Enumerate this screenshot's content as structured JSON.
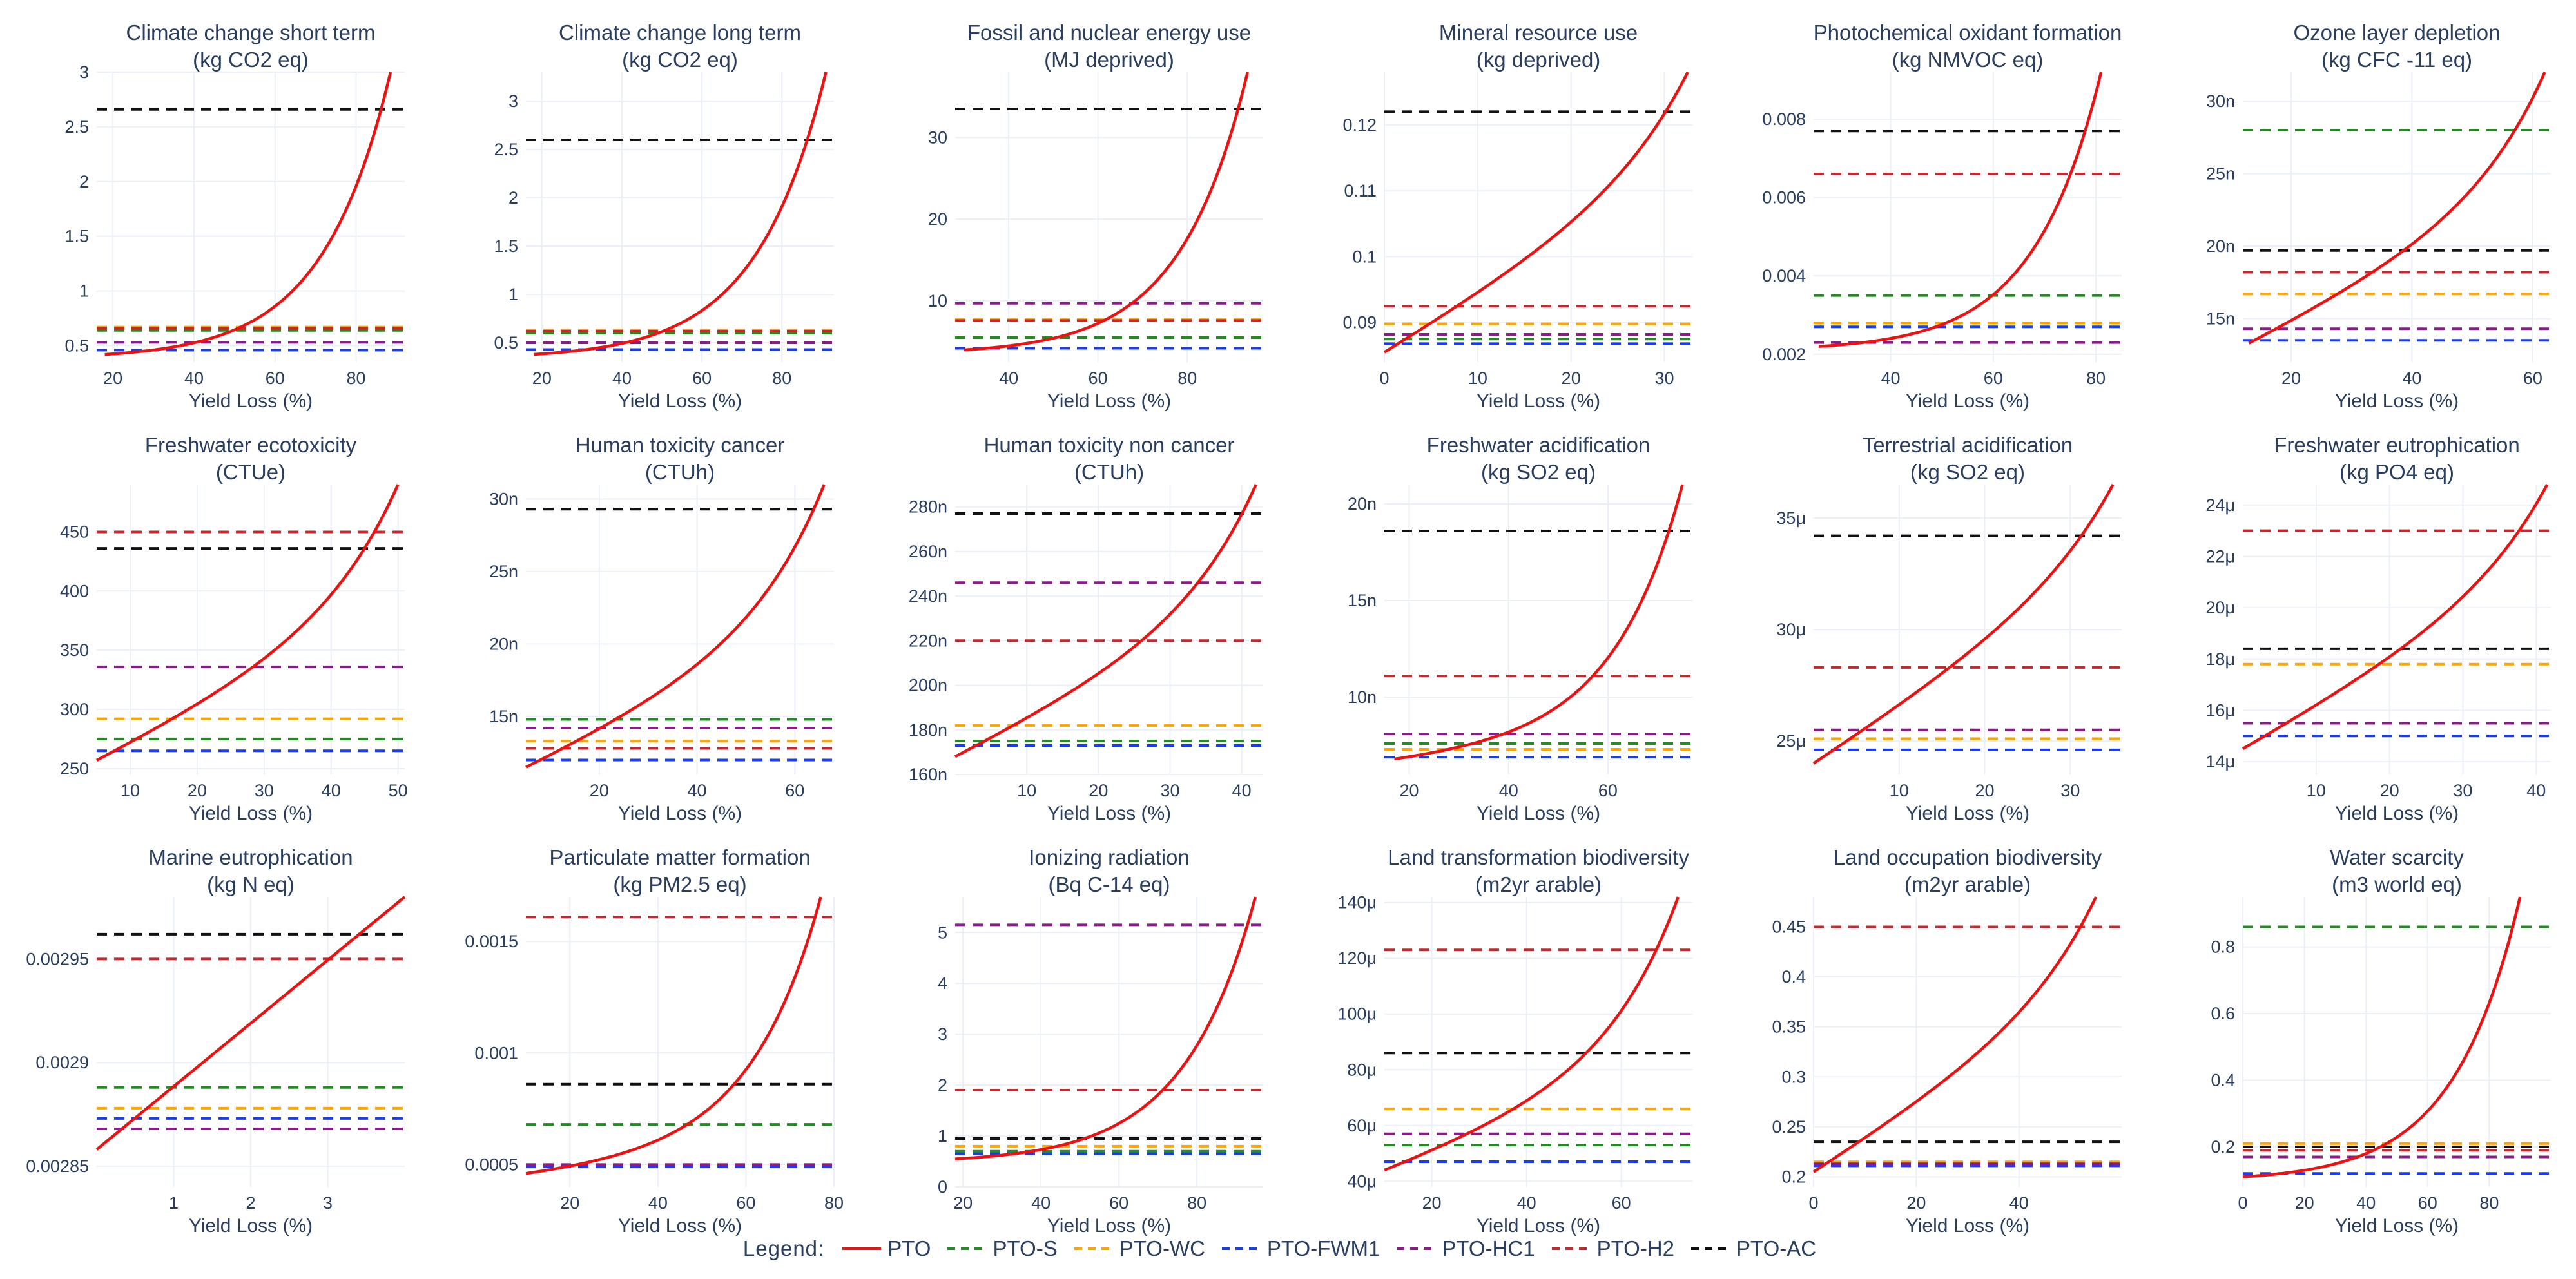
{
  "figure": {
    "x_axis_label": "Yield Loss (%)",
    "legend_title": "Legend:"
  },
  "colors": {
    "PTO": "#ee1111",
    "PTO-S": "#228b22",
    "PTO-WC": "#ffa500",
    "PTO-FWM1": "#1a3cf0",
    "PTO-HC1": "#8b1a8b",
    "PTO-H2": "#c8282d",
    "PTO-AC": "#111111"
  },
  "legend": {
    "items": [
      {
        "name": "PTO",
        "dash": "solid"
      },
      {
        "name": "PTO-S",
        "dash": "dash"
      },
      {
        "name": "PTO-WC",
        "dash": "dash"
      },
      {
        "name": "PTO-FWM1",
        "dash": "dash"
      },
      {
        "name": "PTO-HC1",
        "dash": "dash"
      },
      {
        "name": "PTO-H2",
        "dash": "dash"
      },
      {
        "name": "PTO-AC",
        "dash": "dash"
      }
    ]
  },
  "chart_data": [
    {
      "type": "line",
      "title": "Climate change short term",
      "unit": "(kg CO2 eq)",
      "xlabel": "Yield Loss (%)",
      "xlim": [
        16,
        92
      ],
      "ylim": [
        0.35,
        3.0
      ],
      "xticks": [
        20,
        40,
        60,
        80
      ],
      "yticks": [
        {
          "v": 0.5,
          "l": "0.5"
        },
        {
          "v": 1,
          "l": "1"
        },
        {
          "v": 1.5,
          "l": "1.5"
        },
        {
          "v": 2,
          "l": "2"
        },
        {
          "v": 2.5,
          "l": "2.5"
        },
        {
          "v": 3,
          "l": "3"
        }
      ],
      "pto_curve": {
        "x0": 18,
        "x1": 88.5,
        "y0": 0.42,
        "k": 0.0025,
        "p": 1.4,
        "a": 1
      },
      "baselines": {
        "PTO-S": 0.64,
        "PTO-WC": 0.67,
        "PTO-FWM1": 0.46,
        "PTO-HC1": 0.53,
        "PTO-H2": 0.66,
        "PTO-AC": 2.66
      }
    },
    {
      "type": "line",
      "title": "Climate change long term",
      "unit": "(kg CO2 eq)",
      "xlabel": "Yield Loss (%)",
      "xlim": [
        16,
        93
      ],
      "ylim": [
        0.3,
        3.3
      ],
      "xticks": [
        20,
        40,
        60,
        80
      ],
      "yticks": [
        {
          "v": 0.5,
          "l": "0.5"
        },
        {
          "v": 1,
          "l": "1"
        },
        {
          "v": 1.5,
          "l": "1.5"
        },
        {
          "v": 2,
          "l": "2"
        },
        {
          "v": 2.5,
          "l": "2.5"
        },
        {
          "v": 3,
          "l": "3"
        }
      ],
      "pto_curve": {
        "x0": 18,
        "x1": 91,
        "y0": 0.38,
        "k": 0.0025,
        "p": 1.4,
        "a": 1
      },
      "baselines": {
        "PTO-S": 0.6,
        "PTO-WC": 0.63,
        "PTO-FWM1": 0.43,
        "PTO-HC1": 0.5,
        "PTO-H2": 0.62,
        "PTO-AC": 2.6
      }
    },
    {
      "type": "line",
      "title": "Fossil and nuclear energy use",
      "unit": "(MJ deprived)",
      "xlabel": "Yield Loss (%)",
      "xlim": [
        28,
        97
      ],
      "ylim": [
        2.5,
        38
      ],
      "xticks": [
        40,
        60,
        80
      ],
      "yticks": [
        {
          "v": 10,
          "l": "10"
        },
        {
          "v": 20,
          "l": "20"
        },
        {
          "v": 30,
          "l": "30"
        }
      ],
      "pto_curve": {
        "x0": 30,
        "x1": 93.5,
        "y0": 4,
        "k": 0.0025,
        "p": 1.4,
        "a": 1
      },
      "baselines": {
        "PTO-S": 5.5,
        "PTO-WC": 7.7,
        "PTO-FWM1": 4.2,
        "PTO-HC1": 9.7,
        "PTO-H2": 7.6,
        "PTO-AC": 33.5
      }
    },
    {
      "type": "line",
      "title": "Mineral resource use",
      "unit": "(kg deprived)",
      "xlabel": "Yield Loss (%)",
      "xlim": [
        0,
        33
      ],
      "ylim": [
        0.084,
        0.128
      ],
      "xticks": [
        0,
        10,
        20,
        30
      ],
      "yticks": [
        {
          "v": 0.09,
          "l": "0.09"
        },
        {
          "v": 0.1,
          "l": "0.1"
        },
        {
          "v": 0.11,
          "l": "0.11"
        },
        {
          "v": 0.12,
          "l": "0.12"
        }
      ],
      "pto_curve": {
        "x0": 0,
        "x1": 32.5,
        "y0": 0.0855,
        "k": 0.0025,
        "p": 1.4,
        "a": 0.35
      },
      "baselines": {
        "PTO-S": 0.0875,
        "PTO-WC": 0.0898,
        "PTO-FWM1": 0.0868,
        "PTO-HC1": 0.0882,
        "PTO-H2": 0.0925,
        "PTO-AC": 0.122
      }
    },
    {
      "type": "line",
      "title": "Photochemical oxidant formation",
      "unit": "(kg NMVOC eq)",
      "xlabel": "Yield Loss (%)",
      "xlim": [
        25,
        85
      ],
      "ylim": [
        0.0018,
        0.0092
      ],
      "xticks": [
        40,
        60,
        80
      ],
      "yticks": [
        {
          "v": 0.002,
          "l": "0.002"
        },
        {
          "v": 0.004,
          "l": "0.004"
        },
        {
          "v": 0.006,
          "l": "0.006"
        },
        {
          "v": 0.008,
          "l": "0.008"
        }
      ],
      "pto_curve": {
        "x0": 26,
        "x1": 81,
        "y0": 0.0022,
        "k": 0.0025,
        "p": 1.4,
        "a": 1
      },
      "baselines": {
        "PTO-S": 0.0035,
        "PTO-WC": 0.0028,
        "PTO-FWM1": 0.0027,
        "PTO-HC1": 0.0023,
        "PTO-H2": 0.0066,
        "PTO-AC": 0.0077
      }
    },
    {
      "type": "line",
      "title": "Ozone layer depletion",
      "unit": "(kg CFC -11 eq)",
      "xlabel": "Yield Loss (%)",
      "xlim": [
        12,
        63
      ],
      "ylim": [
        12,
        32
      ],
      "xticks": [
        20,
        40,
        60
      ],
      "yticks": [
        {
          "v": 15,
          "l": "15n"
        },
        {
          "v": 20,
          "l": "20n"
        },
        {
          "v": 25,
          "l": "25n"
        },
        {
          "v": 30,
          "l": "30n"
        }
      ],
      "pto_curve": {
        "x0": 13,
        "x1": 62,
        "y0": 13.3,
        "k": 0.0025,
        "p": 1.4,
        "a": 0.45
      },
      "baselines": {
        "PTO-S": 28,
        "PTO-WC": 16.7,
        "PTO-FWM1": 13.5,
        "PTO-HC1": 14.3,
        "PTO-H2": 18.2,
        "PTO-AC": 19.7
      }
    },
    {
      "type": "line",
      "title": "Freshwater ecotoxicity",
      "unit": "(CTUe)",
      "xlabel": "Yield Loss (%)",
      "xlim": [
        5,
        51
      ],
      "ylim": [
        245,
        490
      ],
      "xticks": [
        10,
        20,
        30,
        40,
        50
      ],
      "yticks": [
        {
          "v": 250,
          "l": "250"
        },
        {
          "v": 300,
          "l": "300"
        },
        {
          "v": 350,
          "l": "350"
        },
        {
          "v": 400,
          "l": "400"
        },
        {
          "v": 450,
          "l": "450"
        }
      ],
      "pto_curve": {
        "x0": 5,
        "x1": 50,
        "y0": 257,
        "k": 0.0025,
        "p": 1.4,
        "a": 0.45
      },
      "baselines": {
        "PTO-S": 275,
        "PTO-WC": 292,
        "PTO-FWM1": 265,
        "PTO-HC1": 336,
        "PTO-H2": 450,
        "PTO-AC": 436
      }
    },
    {
      "type": "line",
      "title": "Human toxicity cancer",
      "unit": "(CTUh)",
      "xlabel": "Yield Loss (%)",
      "xlim": [
        5,
        68
      ],
      "ylim": [
        11,
        31
      ],
      "xticks": [
        20,
        40,
        60
      ],
      "yticks": [
        {
          "v": 15,
          "l": "15n"
        },
        {
          "v": 20,
          "l": "20n"
        },
        {
          "v": 25,
          "l": "25n"
        },
        {
          "v": 30,
          "l": "30n"
        }
      ],
      "pto_curve": {
        "x0": 5,
        "x1": 66,
        "y0": 11.5,
        "k": 0.0025,
        "p": 1.4,
        "a": 0.5
      },
      "baselines": {
        "PTO-S": 14.8,
        "PTO-WC": 13.3,
        "PTO-FWM1": 12,
        "PTO-HC1": 14.2,
        "PTO-H2": 12.8,
        "PTO-AC": 29.3
      }
    },
    {
      "type": "line",
      "title": "Human toxicity non cancer",
      "unit": "(CTUh)",
      "xlabel": "Yield Loss (%)",
      "xlim": [
        0,
        43
      ],
      "ylim": [
        160,
        290
      ],
      "xticks": [
        10,
        20,
        30,
        40
      ],
      "yticks": [
        {
          "v": 160,
          "l": "160n"
        },
        {
          "v": 180,
          "l": "180n"
        },
        {
          "v": 200,
          "l": "200n"
        },
        {
          "v": 220,
          "l": "220n"
        },
        {
          "v": 240,
          "l": "240n"
        },
        {
          "v": 260,
          "l": "260n"
        },
        {
          "v": 280,
          "l": "280n"
        }
      ],
      "pto_curve": {
        "x0": 0,
        "x1": 42,
        "y0": 168,
        "k": 0.0025,
        "p": 1.4,
        "a": 0.45
      },
      "baselines": {
        "PTO-S": 175,
        "PTO-WC": 182,
        "PTO-FWM1": 173,
        "PTO-HC1": 246,
        "PTO-H2": 220,
        "PTO-AC": 277
      }
    },
    {
      "type": "line",
      "title": "Freshwater acidification",
      "unit": "(kg SO2 eq)",
      "xlabel": "Yield Loss (%)",
      "xlim": [
        15,
        77
      ],
      "ylim": [
        6,
        21
      ],
      "xticks": [
        20,
        40,
        60
      ],
      "yticks": [
        {
          "v": 10,
          "l": "10n"
        },
        {
          "v": 15,
          "l": "15n"
        },
        {
          "v": 20,
          "l": "20n"
        }
      ],
      "pto_curve": {
        "x0": 17,
        "x1": 75,
        "y0": 6.8,
        "k": 0.0025,
        "p": 1.4,
        "a": 0.9
      },
      "baselines": {
        "PTO-S": 7.6,
        "PTO-WC": 7.3,
        "PTO-FWM1": 6.9,
        "PTO-HC1": 8.1,
        "PTO-H2": 11.1,
        "PTO-AC": 18.6
      }
    },
    {
      "type": "line",
      "title": "Terrestrial acidification",
      "unit": "(kg SO2 eq)",
      "xlabel": "Yield Loss (%)",
      "xlim": [
        0,
        36
      ],
      "ylim": [
        23.5,
        36.5
      ],
      "xticks": [
        10,
        20,
        30
      ],
      "yticks": [
        {
          "v": 25,
          "l": "25μ"
        },
        {
          "v": 30,
          "l": "30μ"
        },
        {
          "v": 35,
          "l": "35μ"
        }
      ],
      "pto_curve": {
        "x0": 0,
        "x1": 35,
        "y0": 24,
        "k": 0.0025,
        "p": 1.4,
        "a": 0.3
      },
      "baselines": {
        "PTO-S": 25.1,
        "PTO-WC": 25.1,
        "PTO-FWM1": 24.6,
        "PTO-HC1": 25.5,
        "PTO-H2": 28.3,
        "PTO-AC": 34.2
      }
    },
    {
      "type": "line",
      "title": "Freshwater eutrophication",
      "unit": "(kg PO4 eq)",
      "xlabel": "Yield Loss (%)",
      "xlim": [
        0,
        42
      ],
      "ylim": [
        13.5,
        24.8
      ],
      "xticks": [
        10,
        20,
        30,
        40
      ],
      "yticks": [
        {
          "v": 14,
          "l": "14μ"
        },
        {
          "v": 16,
          "l": "16μ"
        },
        {
          "v": 18,
          "l": "18μ"
        },
        {
          "v": 20,
          "l": "20μ"
        },
        {
          "v": 22,
          "l": "22μ"
        },
        {
          "v": 24,
          "l": "24μ"
        }
      ],
      "pto_curve": {
        "x0": 0,
        "x1": 41.5,
        "y0": 14.5,
        "k": 0.0025,
        "p": 1.4,
        "a": 0.35
      },
      "baselines": {
        "PTO-S": 15.5,
        "PTO-WC": 17.8,
        "PTO-FWM1": 15,
        "PTO-HC1": 15.5,
        "PTO-H2": 23,
        "PTO-AC": 18.4
      }
    },
    {
      "type": "line",
      "title": "Marine eutrophication",
      "unit": "(kg N eq)",
      "xlabel": "Yield Loss (%)",
      "xlim": [
        0,
        4
      ],
      "ylim": [
        0.00284,
        0.00298
      ],
      "xticks": [
        1,
        2,
        3
      ],
      "yticks": [
        {
          "v": 0.00285,
          "l": "0.00285"
        },
        {
          "v": 0.0029,
          "l": "0.0029"
        },
        {
          "v": 0.00295,
          "l": "0.00295"
        }
      ],
      "pto_curve": {
        "x0": 0,
        "x1": 4,
        "y0": 0.002858,
        "k": 0.0025,
        "p": 1.4,
        "a": 0
      },
      "baselines": {
        "PTO-S": 0.002888,
        "PTO-WC": 0.002878,
        "PTO-FWM1": 0.002873,
        "PTO-HC1": 0.002868,
        "PTO-H2": 0.00295,
        "PTO-AC": 0.002962
      }
    },
    {
      "type": "line",
      "title": "Particulate matter formation",
      "unit": "(kg PM2.5 eq)",
      "xlabel": "Yield Loss (%)",
      "xlim": [
        10,
        80
      ],
      "ylim": [
        0.0004,
        0.0017
      ],
      "xticks": [
        20,
        40,
        60,
        80
      ],
      "yticks": [
        {
          "v": 0.0005,
          "l": "0.0005"
        },
        {
          "v": 0.001,
          "l": "0.001"
        },
        {
          "v": 0.0015,
          "l": "0.0015"
        }
      ],
      "pto_curve": {
        "x0": 10,
        "x1": 77,
        "y0": 0.00046,
        "k": 0.0025,
        "p": 1.4,
        "a": 0.9
      },
      "baselines": {
        "PTO-S": 0.00068,
        "PTO-WC": 0.0005,
        "PTO-FWM1": 0.00049,
        "PTO-HC1": 0.0005,
        "PTO-H2": 0.00161,
        "PTO-AC": 0.00086
      }
    },
    {
      "type": "line",
      "title": "Ionizing radiation",
      "unit": "(Bq C-14 eq)",
      "xlabel": "Yield Loss (%)",
      "xlim": [
        18,
        97
      ],
      "ylim": [
        0,
        5.7
      ],
      "xticks": [
        20,
        40,
        60,
        80
      ],
      "yticks": [
        {
          "v": 0,
          "l": "0"
        },
        {
          "v": 1,
          "l": "1"
        },
        {
          "v": 2,
          "l": "2"
        },
        {
          "v": 3,
          "l": "3"
        },
        {
          "v": 4,
          "l": "4"
        },
        {
          "v": 5,
          "l": "5"
        }
      ],
      "pto_curve": {
        "x0": 18,
        "x1": 95,
        "y0": 0.55,
        "k": 0.0025,
        "p": 1.4,
        "a": 1.1
      },
      "baselines": {
        "PTO-S": 0.7,
        "PTO-WC": 0.8,
        "PTO-FWM1": 0.65,
        "PTO-HC1": 5.15,
        "PTO-H2": 1.9,
        "PTO-AC": 0.95
      }
    },
    {
      "type": "line",
      "title": "Land transformation biodiversity",
      "unit": "(m2yr arable)",
      "xlabel": "Yield Loss (%)",
      "xlim": [
        10,
        75
      ],
      "ylim": [
        38,
        142
      ],
      "xticks": [
        20,
        40,
        60
      ],
      "yticks": [
        {
          "v": 40,
          "l": "40μ"
        },
        {
          "v": 60,
          "l": "60μ"
        },
        {
          "v": 80,
          "l": "80μ"
        },
        {
          "v": 100,
          "l": "100μ"
        },
        {
          "v": 120,
          "l": "120μ"
        },
        {
          "v": 140,
          "l": "140μ"
        }
      ],
      "pto_curve": {
        "x0": 10,
        "x1": 72,
        "y0": 44,
        "k": 0.0025,
        "p": 1.4,
        "a": 0.6
      },
      "baselines": {
        "PTO-S": 53,
        "PTO-WC": 66,
        "PTO-FWM1": 47,
        "PTO-HC1": 57,
        "PTO-H2": 123,
        "PTO-AC": 86
      }
    },
    {
      "type": "line",
      "title": "Land occupation biodiversity",
      "unit": "(m2yr arable)",
      "xlabel": "Yield Loss (%)",
      "xlim": [
        0,
        60
      ],
      "ylim": [
        0.19,
        0.48
      ],
      "xticks": [
        0,
        20,
        40
      ],
      "yticks": [
        {
          "v": 0.2,
          "l": "0.2"
        },
        {
          "v": 0.25,
          "l": "0.25"
        },
        {
          "v": 0.3,
          "l": "0.3"
        },
        {
          "v": 0.35,
          "l": "0.35"
        },
        {
          "v": 0.4,
          "l": "0.4"
        },
        {
          "v": 0.45,
          "l": "0.45"
        }
      ],
      "pto_curve": {
        "x0": 0,
        "x1": 55,
        "y0": 0.205,
        "k": 0.0025,
        "p": 1.4,
        "a": 0.35
      },
      "baselines": {
        "PTO-S": 0.212,
        "PTO-WC": 0.215,
        "PTO-FWM1": 0.211,
        "PTO-HC1": 0.213,
        "PTO-H2": 0.45,
        "PTO-AC": 0.235
      }
    },
    {
      "type": "line",
      "title": "Water scarcity",
      "unit": "(m3 world eq)",
      "xlabel": "Yield Loss (%)",
      "xlim": [
        0,
        100
      ],
      "ylim": [
        0.08,
        0.95
      ],
      "xticks": [
        0,
        20,
        40,
        60,
        80
      ],
      "yticks": [
        {
          "v": 0.2,
          "l": "0.2"
        },
        {
          "v": 0.4,
          "l": "0.4"
        },
        {
          "v": 0.6,
          "l": "0.6"
        },
        {
          "v": 0.8,
          "l": "0.8"
        }
      ],
      "pto_curve": {
        "x0": 0,
        "x1": 90,
        "y0": 0.11,
        "k": 0.0025,
        "p": 1.4,
        "a": 1.2
      },
      "baselines": {
        "PTO-S": 0.86,
        "PTO-WC": 0.21,
        "PTO-FWM1": 0.12,
        "PTO-HC1": 0.17,
        "PTO-H2": 0.19,
        "PTO-AC": 0.2
      }
    }
  ]
}
